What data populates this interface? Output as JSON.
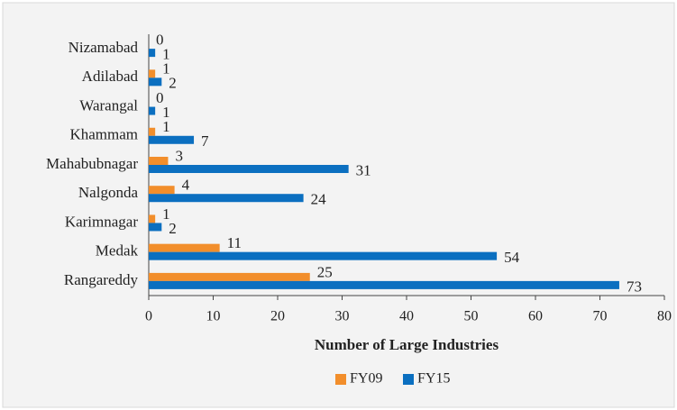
{
  "chart_data": {
    "type": "bar",
    "orientation": "horizontal",
    "categories": [
      "Nizamabad",
      "Adilabad",
      "Warangal",
      "Khammam",
      "Mahabubnagar",
      "Nalgonda",
      "Karimnagar",
      "Medak",
      "Rangareddy"
    ],
    "series": [
      {
        "name": "FY09",
        "color": "#f28e2b",
        "values": [
          0,
          1,
          0,
          1,
          3,
          4,
          1,
          11,
          25
        ]
      },
      {
        "name": "FY15",
        "color": "#0b6fc0",
        "values": [
          1,
          2,
          1,
          7,
          31,
          24,
          2,
          54,
          73
        ]
      }
    ],
    "xlabel": "Number of Large Industries",
    "xlim": [
      0,
      80
    ],
    "xticks": [
      0,
      10,
      20,
      30,
      40,
      50,
      60,
      70,
      80
    ],
    "grid": false,
    "legend": "bottom"
  }
}
